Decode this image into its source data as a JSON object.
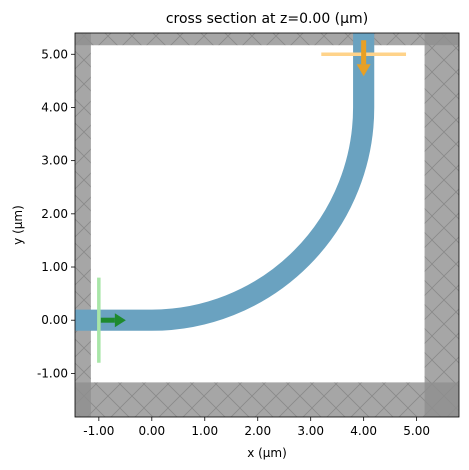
{
  "chart_data": {
    "type": "simulation-cross-section",
    "title": "cross section at z=0.00 (µm)",
    "xlabel": "x (µm)",
    "ylabel": "y (µm)",
    "xlim": [
      -1.45,
      5.8
    ],
    "ylim": [
      -1.82,
      5.4
    ],
    "xticks": [
      -1.0,
      0.0,
      1.0,
      2.0,
      3.0,
      4.0,
      5.0
    ],
    "xtick_labels": [
      "-1.00",
      "0.00",
      "1.00",
      "2.00",
      "3.00",
      "4.00",
      "5.00"
    ],
    "yticks": [
      -1.0,
      0.0,
      1.0,
      2.0,
      3.0,
      4.0,
      5.0
    ],
    "ytick_labels": [
      "-1.00",
      "0.00",
      "1.00",
      "2.00",
      "3.00",
      "4.00",
      "5.00"
    ],
    "grid": false,
    "legend": "none",
    "pml_region": {
      "outer": {
        "x": [
          -1.45,
          5.8
        ],
        "y": [
          -1.82,
          5.4
        ]
      },
      "inner": {
        "x": [
          -1.15,
          5.15
        ],
        "y": [
          -1.17,
          5.17
        ]
      },
      "color": "#a6a6a6"
    },
    "waveguide": {
      "width": 0.4,
      "bend_center": [
        0.0,
        4.0
      ],
      "bend_radius": 4.0,
      "input_start_x": -1.45,
      "output_end_y": 5.4,
      "color": "#6aa2c0"
    },
    "source": {
      "x": -1.0,
      "y_range": [
        -0.8,
        0.8
      ],
      "direction": "+x",
      "line_color": "#a8e6a8",
      "arrow_color": "#1e8a2e"
    },
    "monitor": {
      "y": 5.0,
      "x_range": [
        3.2,
        4.8
      ],
      "direction": "-y",
      "line_color": "#ffd38a",
      "arrow_color": "#e8a024"
    }
  }
}
